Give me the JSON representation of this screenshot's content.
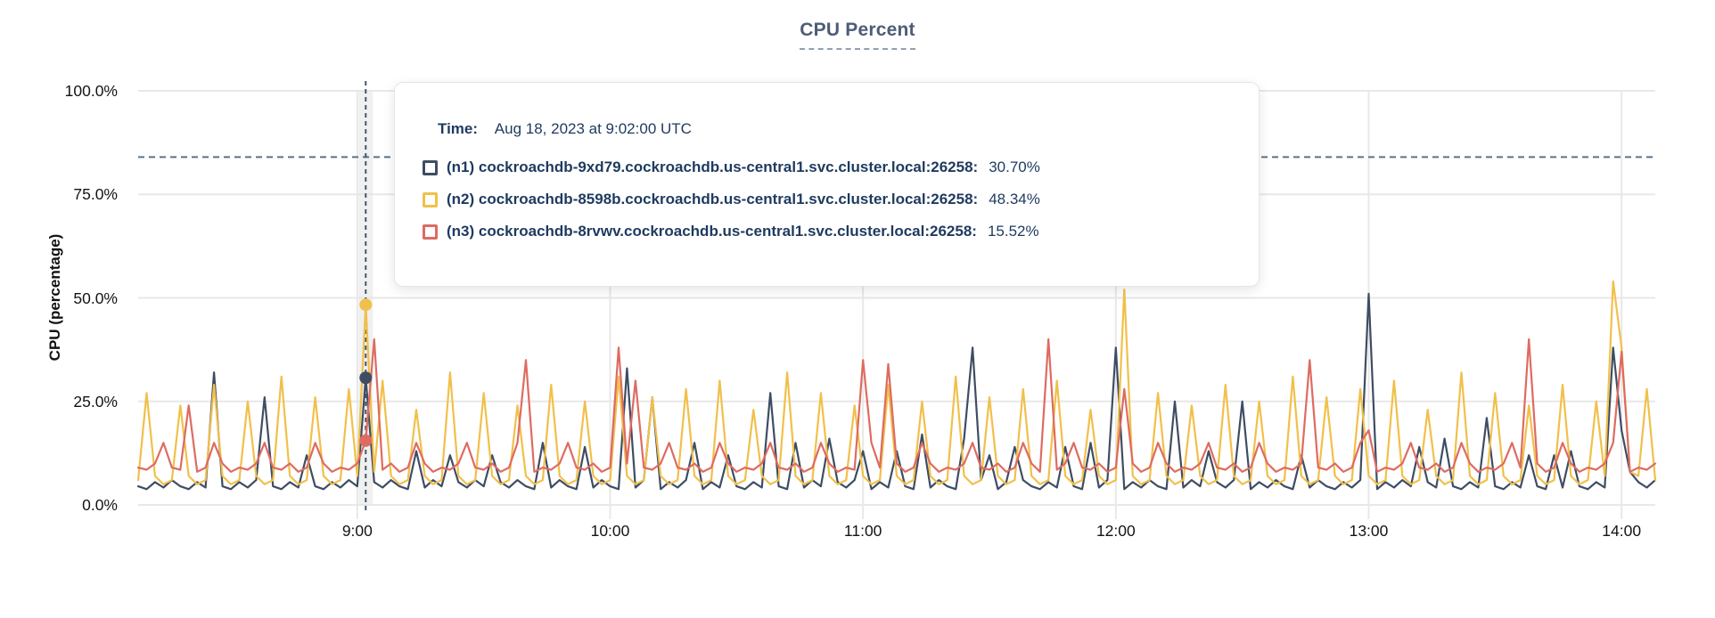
{
  "title": "CPU Percent",
  "y_axis": {
    "title": "CPU (percentage)",
    "tick_labels": [
      "100.0%",
      "75.0%",
      "50.0%",
      "25.0%",
      "0.0%"
    ],
    "tick_values": [
      100,
      75,
      50,
      25,
      0
    ],
    "range": [
      0,
      100
    ]
  },
  "x_axis": {
    "tick_labels": [
      "9:00",
      "10:00",
      "11:00",
      "12:00",
      "13:00",
      "14:00"
    ],
    "tick_sample_indices": [
      26,
      56,
      86,
      116,
      146,
      176
    ],
    "start_time": "8:08",
    "end_time": "14:08",
    "sample_interval_minutes": 2
  },
  "threshold": {
    "value_percent": 84
  },
  "hover": {
    "sample_index": 27,
    "time_prefix": "Time:",
    "time_label": "Aug 18, 2023 at 9:02:00 UTC"
  },
  "colors": {
    "grid": "#e8e8e8",
    "threshold": "#5b7187",
    "hover_line": "#44556b",
    "hover_band": "#e4e4e4",
    "title": "#4e5c77",
    "tooltip_text": "#1e3a5f"
  },
  "chart_data": {
    "type": "line",
    "title": "CPU Percent",
    "xlabel": "",
    "ylabel": "CPU (percentage)",
    "ylim": [
      0,
      100
    ],
    "grid": true,
    "x_start": "8:08",
    "x_interval_minutes": 2,
    "x_tick_labels": [
      "9:00",
      "10:00",
      "11:00",
      "12:00",
      "13:00",
      "14:00"
    ],
    "threshold_percent": 84,
    "hover_time": "Aug 18, 2023 at 9:02:00 UTC",
    "series": [
      {
        "short": "n1",
        "name": "(n1) cockroachdb-9xd79.cockroachdb.us-central1.svc.cluster.local:26258:",
        "color": "#3e4d63",
        "hover_value": "30.70%",
        "values": [
          4.5,
          3.8,
          5.5,
          4.2,
          6,
          4.5,
          3.8,
          5.5,
          4.2,
          32,
          4.5,
          3.8,
          5.5,
          4.2,
          6,
          26,
          4.5,
          3.8,
          5.5,
          4.2,
          12,
          4.5,
          3.8,
          5.5,
          4.2,
          6,
          4.5,
          30.7,
          5.5,
          4.2,
          6,
          4.5,
          3.8,
          13,
          4.2,
          6,
          4.5,
          12,
          5.5,
          4.2,
          6,
          4.5,
          12,
          5.5,
          4.2,
          6,
          4.5,
          3.8,
          15,
          4.2,
          6,
          4.5,
          3.8,
          14,
          4.2,
          6,
          4.5,
          3.8,
          33,
          4.2,
          6,
          26,
          3.8,
          5.5,
          4.2,
          6,
          15,
          3.8,
          5.5,
          4.2,
          12,
          4.5,
          3.8,
          5.5,
          4.2,
          27,
          4.5,
          3.8,
          15,
          4.2,
          6,
          4.5,
          16,
          5.5,
          4.2,
          6,
          13,
          3.8,
          5.5,
          4.2,
          13,
          4.5,
          3.8,
          17,
          4.2,
          6,
          4.5,
          3.8,
          16,
          38,
          6,
          12,
          3.8,
          5.5,
          14,
          6,
          4.5,
          3.8,
          5.5,
          4.2,
          14,
          4.5,
          3.8,
          15,
          4.2,
          6,
          38,
          3.8,
          5.5,
          4.2,
          6,
          4.5,
          3.8,
          25,
          4.2,
          6,
          4.5,
          13,
          5.5,
          4.2,
          6,
          25,
          3.8,
          5.5,
          4.2,
          6,
          4.5,
          3.8,
          12,
          4.2,
          6,
          4.5,
          3.8,
          5.5,
          4.2,
          6,
          51,
          3.8,
          5.5,
          4.2,
          6,
          4.5,
          14,
          5.5,
          4.2,
          16,
          4.5,
          3.8,
          5.5,
          4.2,
          21,
          4.5,
          3.8,
          5.5,
          4.2,
          12,
          4.5,
          3.8,
          12,
          4.2,
          13,
          4.5,
          3.8,
          5.5,
          4.2,
          38,
          18,
          8,
          5.5,
          4.2,
          6
        ]
      },
      {
        "short": "n2",
        "name": "(n2) cockroachdb-8598b.cockroachdb.us-central1.svc.cluster.local:26258:",
        "color": "#f1c04a",
        "hover_value": "48.34%",
        "values": [
          6,
          27,
          7,
          5,
          6,
          24,
          7,
          5,
          6,
          29,
          7,
          5,
          6,
          25,
          7,
          5,
          6,
          31,
          7,
          5,
          6,
          26,
          7,
          5,
          6,
          28,
          7,
          48.3,
          8,
          30,
          7,
          5,
          6,
          23,
          7,
          5,
          6,
          32,
          7,
          5,
          6,
          27,
          7,
          5,
          6,
          24,
          7,
          5,
          6,
          29,
          7,
          5,
          6,
          25,
          7,
          5,
          6,
          31,
          7,
          5,
          6,
          26,
          7,
          5,
          6,
          28,
          7,
          5,
          6,
          30,
          7,
          5,
          6,
          23,
          7,
          5,
          6,
          32,
          7,
          5,
          6,
          27,
          7,
          5,
          6,
          24,
          7,
          5,
          6,
          29,
          7,
          5,
          6,
          25,
          7,
          5,
          6,
          31,
          7,
          5,
          6,
          26,
          7,
          5,
          6,
          28,
          7,
          5,
          6,
          30,
          7,
          5,
          6,
          23,
          7,
          5,
          6,
          52,
          7,
          5,
          6,
          27,
          7,
          5,
          6,
          24,
          7,
          5,
          6,
          29,
          7,
          5,
          6,
          25,
          7,
          5,
          6,
          31,
          7,
          5,
          6,
          26,
          7,
          5,
          6,
          28,
          7,
          5,
          6,
          30,
          7,
          5,
          6,
          23,
          7,
          5,
          6,
          32,
          7,
          5,
          6,
          27,
          7,
          5,
          6,
          24,
          7,
          5,
          6,
          29,
          7,
          5,
          6,
          25,
          7,
          54,
          38,
          8,
          7,
          28,
          6
        ]
      },
      {
        "short": "n3",
        "name": "(n3) cockroachdb-8rvwv.cockroachdb.us-central1.svc.cluster.local:26258:",
        "color": "#de6b61",
        "hover_value": "15.52%",
        "values": [
          9,
          8.5,
          10,
          15,
          9,
          8.5,
          24,
          8,
          9,
          15,
          10,
          8,
          9,
          8.5,
          10,
          15,
          9,
          8.5,
          10,
          8,
          9,
          15,
          10,
          8,
          9,
          8.5,
          10,
          15.52,
          40,
          8.5,
          10,
          8,
          9,
          15,
          10,
          8,
          9,
          8.5,
          10,
          15,
          9,
          8.5,
          10,
          8,
          9,
          15,
          35,
          8,
          9,
          8.5,
          10,
          15,
          9,
          8.5,
          10,
          8,
          9,
          38,
          10,
          30,
          9,
          8.5,
          10,
          15,
          9,
          8.5,
          10,
          8,
          9,
          15,
          10,
          8,
          9,
          8.5,
          10,
          15,
          9,
          8.5,
          10,
          8,
          9,
          15,
          10,
          8,
          9,
          8.5,
          35,
          15,
          9,
          34,
          10,
          8,
          9,
          15,
          10,
          8,
          9,
          8.5,
          10,
          15,
          9,
          8.5,
          10,
          8,
          9,
          15,
          10,
          8,
          40,
          8.5,
          10,
          15,
          9,
          8.5,
          10,
          8,
          9,
          28,
          10,
          8,
          9,
          15,
          10,
          8,
          9,
          8.5,
          10,
          15,
          9,
          8.5,
          10,
          8,
          9,
          15,
          10,
          8,
          9,
          8.5,
          10,
          35,
          9,
          8.5,
          10,
          8,
          9,
          15,
          18,
          8,
          9,
          8.5,
          10,
          15,
          9,
          8.5,
          10,
          8,
          9,
          15,
          10,
          8,
          9,
          8.5,
          10,
          15,
          9,
          40,
          10,
          8,
          9,
          15,
          10,
          8,
          9,
          8.5,
          10,
          15,
          37,
          8,
          9,
          8.5,
          10
        ]
      }
    ]
  }
}
